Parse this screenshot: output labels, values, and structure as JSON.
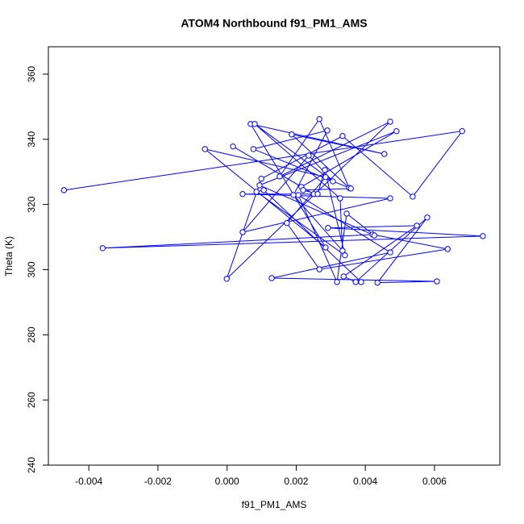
{
  "chart_data": {
    "type": "scatter",
    "title": "ATOM4 Northbound f91_PM1_AMS",
    "x_label": "f91_PM1_AMS",
    "y_label": "Theta (K)",
    "xlim": [
      -0.00517,
      0.00789
    ],
    "ylim": [
      240,
      368.4
    ],
    "xticks": [
      -0.004,
      -0.002,
      {
        "value": 0,
        "label": "0.000"
      },
      0.002,
      0.004,
      0.006
    ],
    "yticks": [
      240,
      260,
      280,
      300,
      320,
      340,
      360
    ],
    "series": [
      {
        "color": "#0000ff",
        "x": [
          -0.00472,
          0.0068,
          0.00537,
          0.00334,
          0.00099,
          -1e-05,
          0.00472,
          0.00152,
          0.00267,
          0.00353,
          0.00187,
          0.00455,
          0.00068,
          0.00285,
          -0.00064,
          0.00285,
          0.00173,
          0.00267,
          0.00638,
          0.00421,
          -0.0036,
          0.0074,
          0.00292,
          0.00549,
          0.00337,
          0.00372,
          0.00579,
          0.00435,
          0.00607,
          0.00129,
          0.00472,
          0.00206,
          0.00318,
          0.00346,
          0.00426,
          0.00094,
          0.0049,
          0.00215,
          0.00017,
          0.00251,
          0.00045,
          0.00472,
          0.00045,
          0.00236,
          0.00306,
          0.0008,
          0.00327,
          0.00334,
          0.00192,
          0.0029,
          0.00076,
          0.00358,
          0.0022,
          0.00262,
          0.00283,
          0.00341,
          0.00085,
          0.00106,
          0.00388
        ],
        "values": [
          324.4,
          342.5,
          322.4,
          341,
          327.9,
          297.2,
          345.4,
          328.6,
          346.2,
          325.1,
          341.5,
          335.5,
          344.7,
          306.8,
          337,
          328.4,
          314.3,
          300.1,
          306.3,
          310.8,
          306.6,
          310.3,
          312.8,
          313.5,
          297.9,
          296.2,
          316,
          296,
          296.4,
          297.4,
          305.3,
          322.9,
          296.2,
          317.2,
          310.5,
          325.9,
          342.5,
          325.4,
          337.8,
          323.2,
          323.2,
          321.9,
          311.5,
          335,
          327.1,
          344.7,
          321.9,
          305.8,
          322.9,
          342.7,
          337,
          324.9,
          324.4,
          323.2,
          330.6,
          304.4,
          323.9,
          324.4,
          296.2
        ]
      }
    ]
  }
}
